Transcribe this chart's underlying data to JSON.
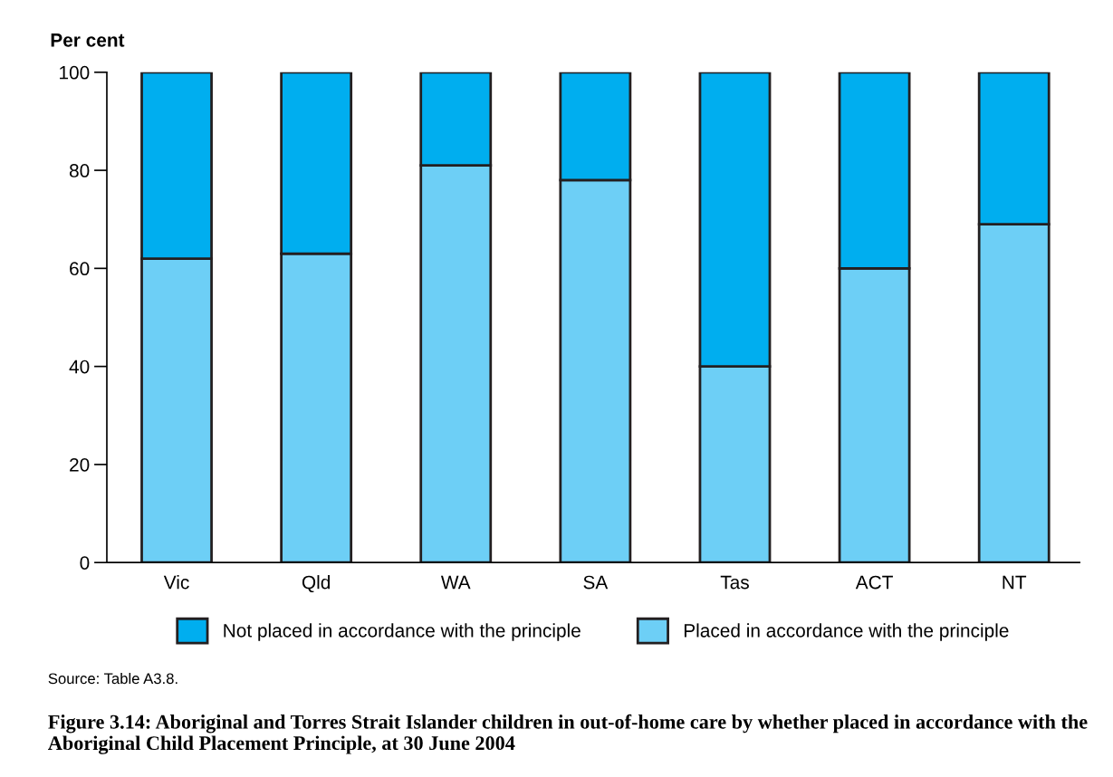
{
  "chart_data": {
    "type": "bar",
    "stacked": true,
    "title": "Figure 3.14: Aboriginal and Torres Strait Islander children in out-of-home care by whether placed in accordance with the Aboriginal Child Placement Principle, at 30 June 2004",
    "ylabel": "Per cent",
    "categories": [
      "Vic",
      "Qld",
      "WA",
      "SA",
      "Tas",
      "ACT",
      "NT"
    ],
    "series": [
      {
        "name": "Placed in accordance with the principle",
        "color": "#6dcff6",
        "values": [
          62,
          63,
          81,
          78,
          40,
          60,
          69
        ]
      },
      {
        "name": "Not placed in accordance with the principle",
        "color": "#00aeef",
        "values": [
          38,
          37,
          19,
          22,
          60,
          40,
          31
        ]
      }
    ],
    "ylim": [
      0,
      100
    ],
    "yticks": [
      0,
      20,
      40,
      60,
      80,
      100
    ],
    "legend": "bottom",
    "grid": false,
    "annotations": [
      "Source: Table A3.8."
    ]
  }
}
